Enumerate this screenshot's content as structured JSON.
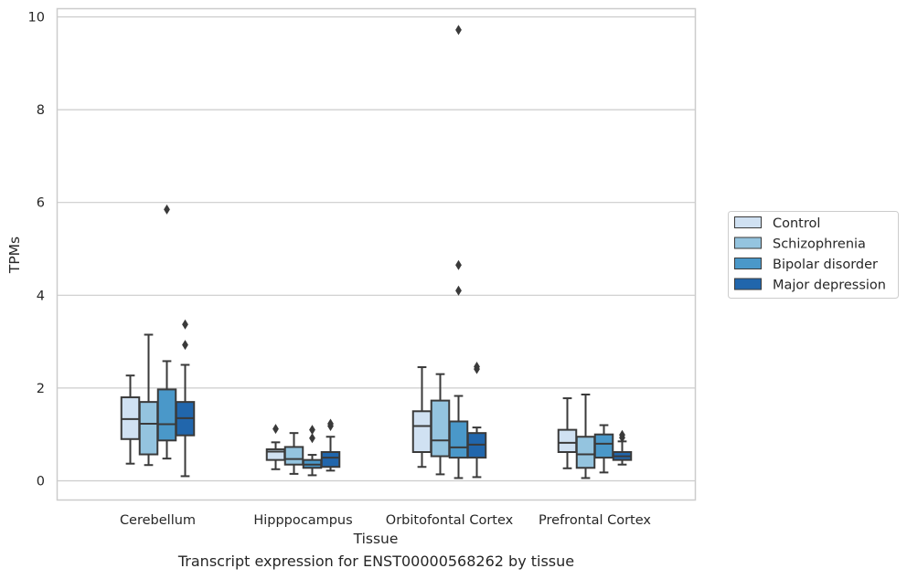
{
  "caption": "Transcript expression for ENST00000568262 by tissue",
  "chart_data": {
    "type": "boxplot",
    "xlabel": "Tissue",
    "ylabel": "TPMs",
    "ylim": [
      -0.4,
      10.2
    ],
    "yticks": [
      0,
      2,
      4,
      6,
      8,
      10
    ],
    "grid": true,
    "legend_position": "right",
    "categories": [
      "Cerebellum",
      "Hipppocampus",
      "Orbitofontal Cortex",
      "Prefrontal Cortex"
    ],
    "series": [
      {
        "name": "Control",
        "color": "#d0e1f2",
        "boxes": [
          {
            "whisker_low": 0.37,
            "q1": 0.9,
            "median": 1.33,
            "q3": 1.8,
            "whisker_high": 2.27,
            "outliers": []
          },
          {
            "whisker_low": 0.25,
            "q1": 0.45,
            "median": 0.63,
            "q3": 0.68,
            "whisker_high": 0.83,
            "outliers": [
              1.12
            ]
          },
          {
            "whisker_low": 0.3,
            "q1": 0.62,
            "median": 1.18,
            "q3": 1.5,
            "whisker_high": 2.45,
            "outliers": []
          },
          {
            "whisker_low": 0.27,
            "q1": 0.62,
            "median": 0.82,
            "q3": 1.1,
            "whisker_high": 1.78,
            "outliers": []
          }
        ]
      },
      {
        "name": "Schizophrenia",
        "color": "#94c4df",
        "boxes": [
          {
            "whisker_low": 0.34,
            "q1": 0.57,
            "median": 1.23,
            "q3": 1.7,
            "whisker_high": 3.15,
            "outliers": []
          },
          {
            "whisker_low": 0.15,
            "q1": 0.35,
            "median": 0.47,
            "q3": 0.73,
            "whisker_high": 1.03,
            "outliers": []
          },
          {
            "whisker_low": 0.14,
            "q1": 0.53,
            "median": 0.87,
            "q3": 1.73,
            "whisker_high": 2.3,
            "outliers": []
          },
          {
            "whisker_low": 0.06,
            "q1": 0.28,
            "median": 0.57,
            "q3": 0.95,
            "whisker_high": 1.86,
            "outliers": []
          }
        ]
      },
      {
        "name": "Bipolar disorder",
        "color": "#4a98c9",
        "boxes": [
          {
            "whisker_low": 0.48,
            "q1": 0.87,
            "median": 1.22,
            "q3": 1.97,
            "whisker_high": 2.58,
            "outliers": [
              5.85
            ]
          },
          {
            "whisker_low": 0.12,
            "q1": 0.28,
            "median": 0.35,
            "q3": 0.45,
            "whisker_high": 0.56,
            "outliers": [
              0.92,
              1.1
            ]
          },
          {
            "whisker_low": 0.06,
            "q1": 0.5,
            "median": 0.72,
            "q3": 1.28,
            "whisker_high": 1.83,
            "outliers": [
              4.65,
              4.1,
              9.72
            ]
          },
          {
            "whisker_low": 0.18,
            "q1": 0.5,
            "median": 0.8,
            "q3": 1.0,
            "whisker_high": 1.2,
            "outliers": []
          }
        ]
      },
      {
        "name": "Major depression",
        "color": "#2166ac",
        "boxes": [
          {
            "whisker_low": 0.1,
            "q1": 0.98,
            "median": 1.35,
            "q3": 1.7,
            "whisker_high": 2.5,
            "outliers": [
              2.93,
              3.37
            ]
          },
          {
            "whisker_low": 0.22,
            "q1": 0.3,
            "median": 0.5,
            "q3": 0.62,
            "whisker_high": 0.95,
            "outliers": [
              1.18,
              1.23
            ]
          },
          {
            "whisker_low": 0.08,
            "q1": 0.5,
            "median": 0.78,
            "q3": 1.03,
            "whisker_high": 1.15,
            "outliers": [
              2.41,
              2.46
            ]
          },
          {
            "whisker_low": 0.35,
            "q1": 0.45,
            "median": 0.53,
            "q3": 0.62,
            "whisker_high": 0.85,
            "outliers": [
              0.93,
              0.99
            ]
          }
        ]
      }
    ]
  }
}
